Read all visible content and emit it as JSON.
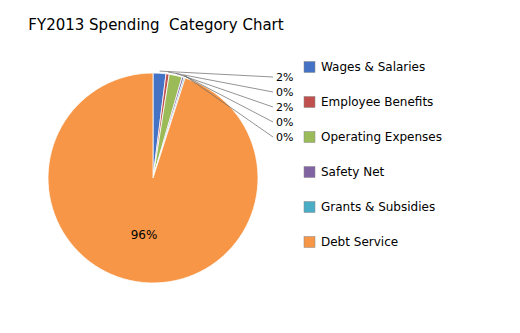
{
  "chart_data": {
    "type": "pie",
    "title": "FY2013 Spending  Category Chart",
    "categories": [
      "Wages & Salaries",
      "Employee Benefits",
      "Operating Expenses",
      "Safety Net",
      "Grants & Subsidies",
      "Debt Service"
    ],
    "values": [
      2,
      0.5,
      2,
      0.3,
      0.2,
      96
    ],
    "value_labels": [
      "2%",
      "0%",
      "2%",
      "0%",
      "0%",
      "96%"
    ],
    "colors": [
      "#4472C4",
      "#C0504D",
      "#9BBB59",
      "#8064A2",
      "#4BACC6",
      "#F79646"
    ],
    "data_labels": true
  }
}
